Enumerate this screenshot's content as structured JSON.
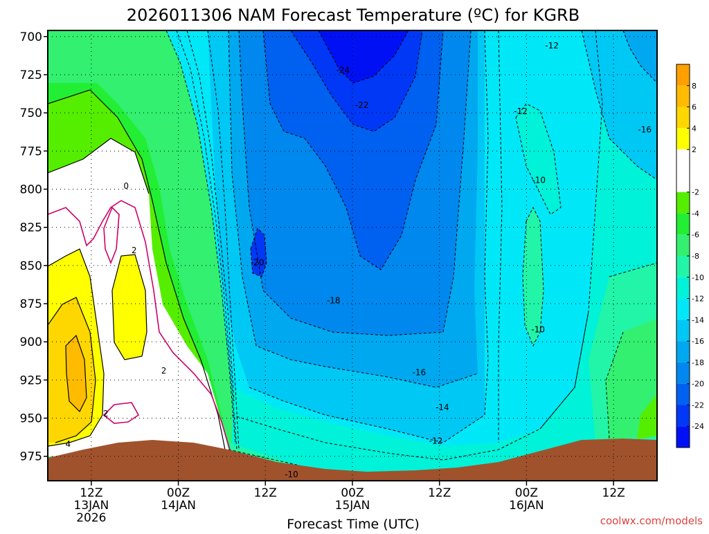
{
  "chart_data": {
    "type": "heatmap",
    "title": "2026011306 NAM Forecast Temperature (ºC) for KGRB",
    "xlabel": "Forecast Time (UTC)",
    "credit": "coolwx.com/models",
    "y_axis": {
      "ticks": [
        700,
        725,
        750,
        775,
        800,
        825,
        850,
        875,
        900,
        925,
        950,
        975
      ],
      "range": [
        696,
        991
      ],
      "orientation": "inverted"
    },
    "x_axis": {
      "ticks": [
        {
          "hours": 6,
          "line1": "12Z",
          "line2": "13JAN",
          "line3": "2026"
        },
        {
          "hours": 18,
          "line1": "00Z",
          "line2": "14JAN",
          "line3": ""
        },
        {
          "hours": 30,
          "line1": "12Z",
          "line2": "",
          "line3": ""
        },
        {
          "hours": 42,
          "line1": "00Z",
          "line2": "15JAN",
          "line3": ""
        },
        {
          "hours": 54,
          "line1": "12Z",
          "line2": "",
          "line3": ""
        },
        {
          "hours": 66,
          "line1": "00Z",
          "line2": "16JAN",
          "line3": ""
        },
        {
          "hours": 78,
          "line1": "12Z",
          "line2": "",
          "line3": ""
        }
      ],
      "range": [
        0,
        84
      ]
    },
    "colorbar": {
      "labels": [
        "8",
        "6",
        "4",
        "2",
        "-2",
        "-4",
        "-6",
        "-8",
        "-10",
        "-12",
        "-14",
        "-16",
        "-18",
        "-20",
        "-22",
        "-24"
      ],
      "bands": [
        {
          "max": 10,
          "min": 8,
          "color": "#ff9f00"
        },
        {
          "max": 8,
          "min": 6,
          "color": "#ffbb00"
        },
        {
          "max": 6,
          "min": 4,
          "color": "#ffd700"
        },
        {
          "max": 4,
          "min": 2,
          "color": "#ffff00"
        },
        {
          "max": 2,
          "min": -2,
          "color": "#ffffff"
        },
        {
          "max": -2,
          "min": -4,
          "color": "#55ee00"
        },
        {
          "max": -4,
          "min": -6,
          "color": "#22ee33"
        },
        {
          "max": -6,
          "min": -8,
          "color": "#33f070"
        },
        {
          "max": -8,
          "min": -10,
          "color": "#22f5a8"
        },
        {
          "max": -10,
          "min": -12,
          "color": "#00f2d8"
        },
        {
          "max": -12,
          "min": -14,
          "color": "#00e8f8"
        },
        {
          "max": -14,
          "min": -16,
          "color": "#00c8f5"
        },
        {
          "max": -16,
          "min": -18,
          "color": "#00a8f0"
        },
        {
          "max": -18,
          "min": -20,
          "color": "#0088ee"
        },
        {
          "max": -20,
          "min": -22,
          "color": "#0060f0"
        },
        {
          "max": -22,
          "min": -24,
          "color": "#0038f5"
        },
        {
          "max": -24,
          "min": -26,
          "color": "#0010f5"
        }
      ]
    },
    "contour_labels": [
      {
        "text": "-24",
        "hours": 40.7,
        "pressure": 722
      },
      {
        "text": "-22",
        "hours": 43.3,
        "pressure": 745
      },
      {
        "text": "-20",
        "hours": 28.9,
        "pressure": 848
      },
      {
        "text": "-18",
        "hours": 39.4,
        "pressure": 873
      },
      {
        "text": "-16",
        "hours": 51.2,
        "pressure": 920
      },
      {
        "text": "-14",
        "hours": 54.4,
        "pressure": 943
      },
      {
        "text": "-12",
        "hours": 53.5,
        "pressure": 965
      },
      {
        "text": "-10",
        "hours": 33.6,
        "pressure": 987
      },
      {
        "text": "-12",
        "hours": 69.5,
        "pressure": 706
      },
      {
        "text": "-12",
        "hours": 65.2,
        "pressure": 749
      },
      {
        "text": "-16",
        "hours": 82.3,
        "pressure": 761
      },
      {
        "text": "-10",
        "hours": 67.7,
        "pressure": 794
      },
      {
        "text": "-10",
        "hours": 67.6,
        "pressure": 892
      },
      {
        "text": "0",
        "hours": 10.8,
        "pressure": 798
      },
      {
        "text": "2",
        "hours": 11.9,
        "pressure": 840
      },
      {
        "text": "2",
        "hours": 16.0,
        "pressure": 919
      },
      {
        "text": "2",
        "hours": 8.0,
        "pressure": 947
      },
      {
        "text": "4",
        "hours": 2.8,
        "pressure": 967
      }
    ]
  }
}
